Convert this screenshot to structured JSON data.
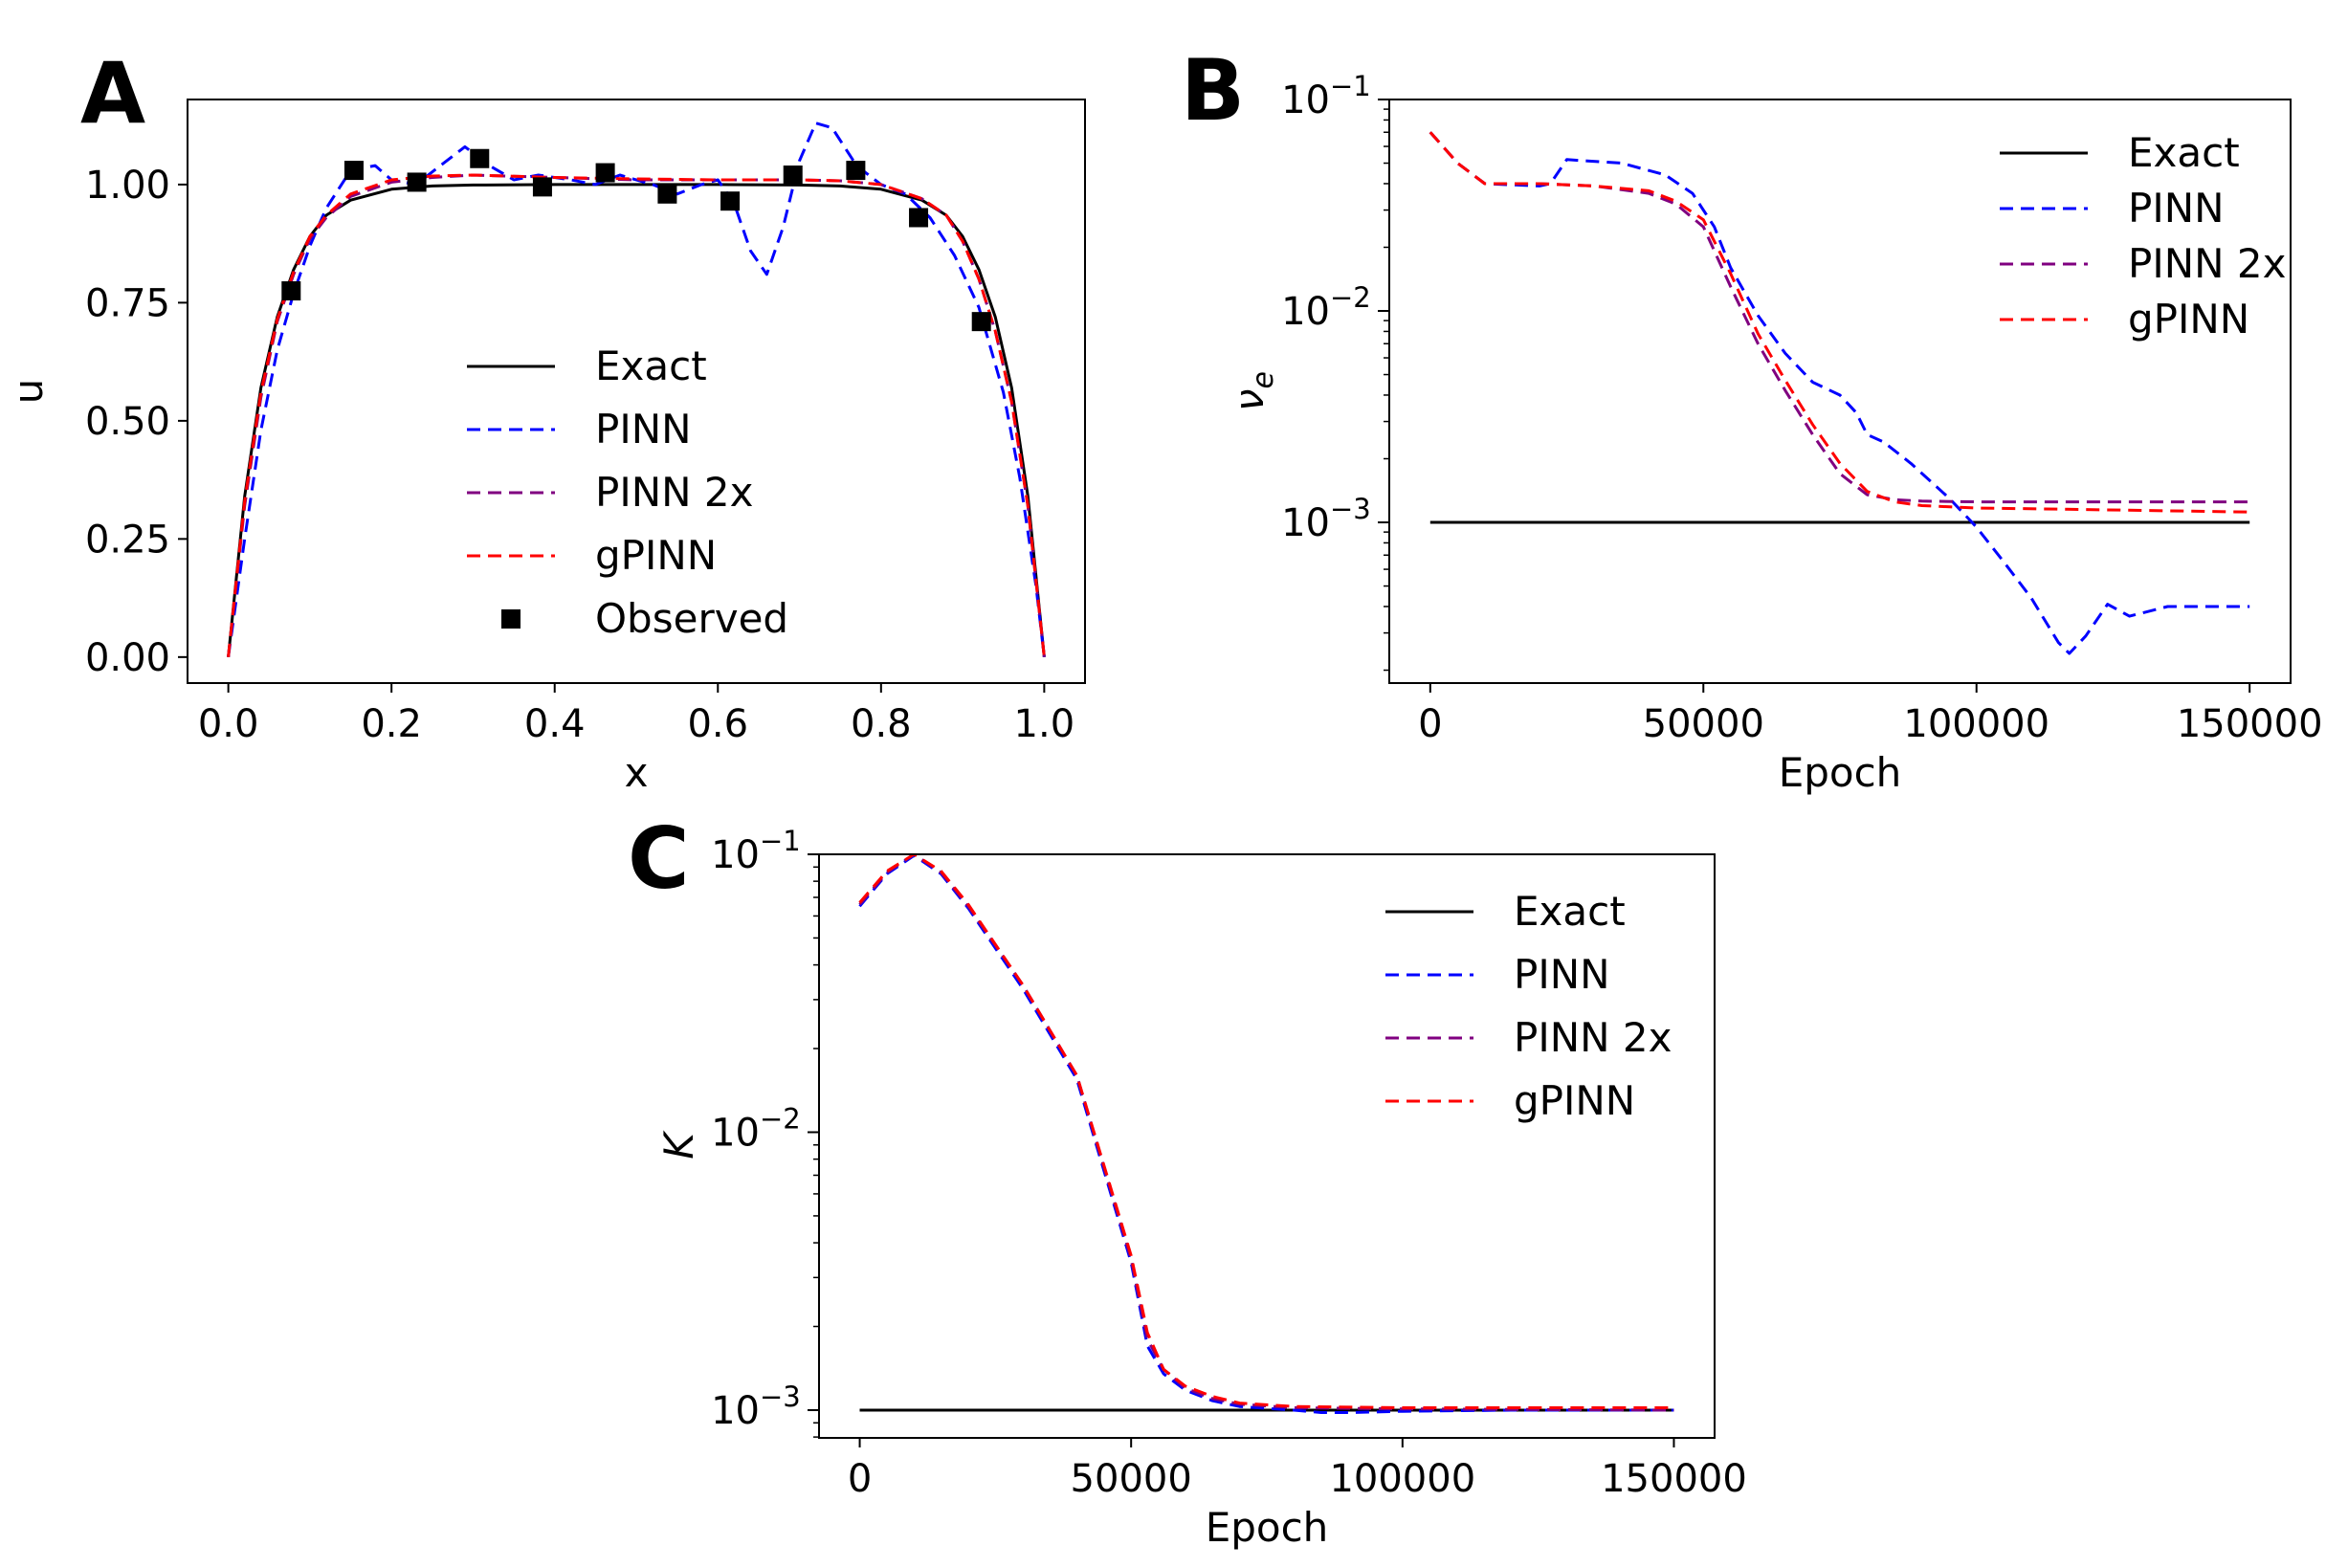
{
  "series_styles": {
    "Exact": {
      "color": "#000000",
      "dash": "none"
    },
    "PINN": {
      "color": "#0000ff",
      "dash": "14 8"
    },
    "PINN 2x": {
      "color": "#800080",
      "dash": "14 8"
    },
    "gPINN": {
      "color": "#ff0000",
      "dash": "14 8"
    },
    "Observed": {
      "color": "#000000",
      "marker": "square"
    }
  },
  "chart_data": [
    {
      "id": "A",
      "panel_label": "A",
      "type": "line",
      "xlabel": "x",
      "ylabel": "u",
      "xlim": [
        -0.05,
        1.05
      ],
      "ylim": [
        -0.055,
        1.18
      ],
      "yscale": "linear",
      "xticks": [
        0.0,
        0.2,
        0.4,
        0.6,
        0.8,
        1.0
      ],
      "xtick_labels": [
        "0.0",
        "0.2",
        "0.4",
        "0.6",
        "0.8",
        "1.0"
      ],
      "yticks": [
        0.0,
        0.25,
        0.5,
        0.75,
        1.0
      ],
      "ytick_labels": [
        "0.00",
        "0.25",
        "0.50",
        "0.75",
        "1.00"
      ],
      "legend": [
        "Exact",
        "PINN",
        "PINN 2x",
        "gPINN",
        "Observed"
      ],
      "legend_loc": "center",
      "series": [
        {
          "name": "Exact",
          "x": [
            0,
            0.02,
            0.04,
            0.06,
            0.08,
            0.1,
            0.12,
            0.15,
            0.2,
            0.25,
            0.3,
            0.4,
            0.5,
            0.6,
            0.7,
            0.75,
            0.8,
            0.85,
            0.88,
            0.9,
            0.92,
            0.94,
            0.96,
            0.98,
            1.0
          ],
          "y": [
            0,
            0.34,
            0.57,
            0.72,
            0.82,
            0.89,
            0.935,
            0.967,
            0.99,
            0.997,
            0.999,
            1.0,
            1.0,
            1.0,
            0.999,
            0.997,
            0.99,
            0.967,
            0.935,
            0.89,
            0.82,
            0.72,
            0.57,
            0.34,
            0
          ]
        },
        {
          "name": "PINN",
          "x": [
            0,
            0.02,
            0.04,
            0.06,
            0.08,
            0.1,
            0.12,
            0.15,
            0.18,
            0.2,
            0.23,
            0.26,
            0.29,
            0.32,
            0.35,
            0.38,
            0.42,
            0.45,
            0.48,
            0.52,
            0.55,
            0.58,
            0.6,
            0.62,
            0.64,
            0.66,
            0.68,
            0.7,
            0.72,
            0.74,
            0.77,
            0.8,
            0.83,
            0.86,
            0.89,
            0.92,
            0.95,
            0.97,
            0.99,
            1.0
          ],
          "y": [
            0,
            0.25,
            0.48,
            0.65,
            0.77,
            0.87,
            0.95,
            1.03,
            1.04,
            1.01,
            1.0,
            1.04,
            1.08,
            1.04,
            1.01,
            1.02,
            1.01,
            1.0,
            1.02,
            1.0,
            0.98,
            1.0,
            1.01,
            0.96,
            0.86,
            0.81,
            0.91,
            1.05,
            1.13,
            1.12,
            1.04,
            1.0,
            0.98,
            0.93,
            0.85,
            0.74,
            0.56,
            0.38,
            0.15,
            0
          ]
        },
        {
          "name": "PINN 2x",
          "x": [
            0,
            0.02,
            0.04,
            0.06,
            0.08,
            0.1,
            0.12,
            0.15,
            0.2,
            0.25,
            0.3,
            0.4,
            0.5,
            0.6,
            0.7,
            0.75,
            0.8,
            0.85,
            0.88,
            0.9,
            0.92,
            0.94,
            0.96,
            0.98,
            1.0
          ],
          "y": [
            0,
            0.32,
            0.55,
            0.71,
            0.81,
            0.885,
            0.93,
            0.975,
            1.005,
            1.015,
            1.02,
            1.015,
            1.01,
            1.01,
            1.01,
            1.008,
            1.0,
            0.97,
            0.935,
            0.88,
            0.8,
            0.69,
            0.54,
            0.32,
            0
          ]
        },
        {
          "name": "gPINN",
          "x": [
            0,
            0.02,
            0.04,
            0.06,
            0.08,
            0.1,
            0.12,
            0.15,
            0.2,
            0.25,
            0.3,
            0.4,
            0.5,
            0.6,
            0.7,
            0.75,
            0.8,
            0.85,
            0.88,
            0.9,
            0.92,
            0.94,
            0.96,
            0.98,
            1.0
          ],
          "y": [
            0,
            0.33,
            0.56,
            0.715,
            0.815,
            0.89,
            0.935,
            0.98,
            1.01,
            1.018,
            1.02,
            1.015,
            1.012,
            1.01,
            1.01,
            1.008,
            1.0,
            0.97,
            0.935,
            0.88,
            0.8,
            0.69,
            0.54,
            0.32,
            0
          ]
        },
        {
          "name": "Observed",
          "x": [
            0.077,
            0.154,
            0.231,
            0.308,
            0.385,
            0.462,
            0.538,
            0.615,
            0.692,
            0.769,
            0.846,
            0.923
          ],
          "y": [
            0.775,
            1.03,
            1.005,
            1.055,
            0.995,
            1.025,
            0.98,
            0.965,
            1.02,
            1.03,
            0.93,
            0.71
          ]
        }
      ]
    },
    {
      "id": "B",
      "panel_label": "B",
      "type": "line",
      "xlabel": "Epoch",
      "ylabel": "ν_e",
      "xlim": [
        -7500,
        157500
      ],
      "ylim_exp": [
        -3.76,
        -1
      ],
      "yscale": "log",
      "xticks": [
        0,
        50000,
        100000,
        150000
      ],
      "xtick_labels": [
        "0",
        "50000",
        "100000",
        "150000"
      ],
      "yticks_exp": [
        -3,
        -2,
        -1
      ],
      "ytick_labels": [
        "10",
        "10",
        "10"
      ],
      "ytick_exponents": [
        "−3",
        "−2",
        "−1"
      ],
      "legend": [
        "Exact",
        "PINN",
        "PINN 2x",
        "gPINN"
      ],
      "legend_loc": "upper right",
      "series": [
        {
          "name": "Exact",
          "x": [
            0,
            150000
          ],
          "y": [
            0.001,
            0.001
          ]
        },
        {
          "name": "PINN",
          "x": [
            0,
            5000,
            10000,
            20000,
            22000,
            25000,
            35000,
            43000,
            48000,
            52000,
            55000,
            60000,
            65000,
            70000,
            75000,
            78000,
            80000,
            83000,
            88000,
            95000,
            100000,
            105000,
            110000,
            115000,
            117000,
            120000,
            124000,
            128000,
            135000,
            150000
          ],
          "y": [
            0.07,
            0.05,
            0.04,
            0.039,
            0.04,
            0.052,
            0.05,
            0.044,
            0.036,
            0.025,
            0.016,
            0.0095,
            0.0063,
            0.0046,
            0.004,
            0.0033,
            0.0026,
            0.0024,
            0.0019,
            0.0013,
            0.00095,
            0.00065,
            0.00044,
            0.00027,
            0.00024,
            0.00029,
            0.00041,
            0.00036,
            0.0004,
            0.0004
          ]
        },
        {
          "name": "PINN 2x",
          "x": [
            0,
            5000,
            10000,
            20000,
            30000,
            40000,
            45000,
            50000,
            55000,
            60000,
            65000,
            70000,
            75000,
            80000,
            85000,
            90000,
            100000,
            120000,
            150000
          ],
          "y": [
            0.07,
            0.05,
            0.04,
            0.04,
            0.039,
            0.036,
            0.032,
            0.025,
            0.013,
            0.007,
            0.0042,
            0.0026,
            0.0017,
            0.00135,
            0.00128,
            0.00126,
            0.00125,
            0.00125,
            0.00125
          ]
        },
        {
          "name": "gPINN",
          "x": [
            0,
            5000,
            10000,
            20000,
            30000,
            40000,
            45000,
            50000,
            55000,
            60000,
            65000,
            70000,
            75000,
            80000,
            85000,
            90000,
            100000,
            120000,
            150000
          ],
          "y": [
            0.07,
            0.05,
            0.04,
            0.04,
            0.039,
            0.037,
            0.033,
            0.027,
            0.015,
            0.0078,
            0.0047,
            0.0029,
            0.0019,
            0.0014,
            0.00125,
            0.0012,
            0.00117,
            0.00115,
            0.00112
          ]
        }
      ]
    },
    {
      "id": "C",
      "panel_label": "C",
      "type": "line",
      "xlabel": "Epoch",
      "ylabel": "K",
      "xlim": [
        -7500,
        157500
      ],
      "ylim_exp": [
        -3.1,
        -1
      ],
      "yscale": "log",
      "xticks": [
        0,
        50000,
        100000,
        150000
      ],
      "xtick_labels": [
        "0",
        "50000",
        "100000",
        "150000"
      ],
      "yticks_exp": [
        -3,
        -2,
        -1
      ],
      "ytick_labels": [
        "10",
        "10",
        "10"
      ],
      "ytick_exponents": [
        "−3",
        "−2",
        "−1"
      ],
      "legend": [
        "Exact",
        "PINN",
        "PINN 2x",
        "gPINN"
      ],
      "legend_loc": "upper right",
      "series": [
        {
          "name": "Exact",
          "x": [
            0,
            150000
          ],
          "y": [
            0.001,
            0.001
          ]
        },
        {
          "name": "PINN",
          "x": [
            0,
            5000,
            10000,
            15000,
            20000,
            30000,
            40000,
            50000,
            53000,
            56000,
            60000,
            65000,
            70000,
            80000,
            85000,
            90000,
            100000,
            120000,
            150000
          ],
          "y": [
            0.065,
            0.085,
            0.099,
            0.085,
            0.064,
            0.033,
            0.0155,
            0.0034,
            0.0017,
            0.00135,
            0.00118,
            0.00108,
            0.00103,
            0.001,
            0.00098,
            0.00098,
            0.00099,
            0.001,
            0.001
          ]
        },
        {
          "name": "PINN 2x",
          "x": [
            0,
            5000,
            10000,
            15000,
            20000,
            30000,
            40000,
            50000,
            53000,
            56000,
            60000,
            65000,
            70000,
            80000,
            100000,
            150000
          ],
          "y": [
            0.066,
            0.086,
            0.1,
            0.086,
            0.065,
            0.034,
            0.016,
            0.0035,
            0.0018,
            0.0014,
            0.0012,
            0.0011,
            0.00105,
            0.00102,
            0.00101,
            0.001
          ]
        },
        {
          "name": "gPINN",
          "x": [
            0,
            5000,
            10000,
            15000,
            20000,
            30000,
            40000,
            50000,
            53000,
            56000,
            60000,
            65000,
            70000,
            80000,
            100000,
            150000
          ],
          "y": [
            0.067,
            0.087,
            0.1,
            0.087,
            0.066,
            0.034,
            0.016,
            0.0036,
            0.0019,
            0.0014,
            0.00122,
            0.00112,
            0.00106,
            0.00103,
            0.00102,
            0.00102
          ]
        }
      ]
    }
  ]
}
